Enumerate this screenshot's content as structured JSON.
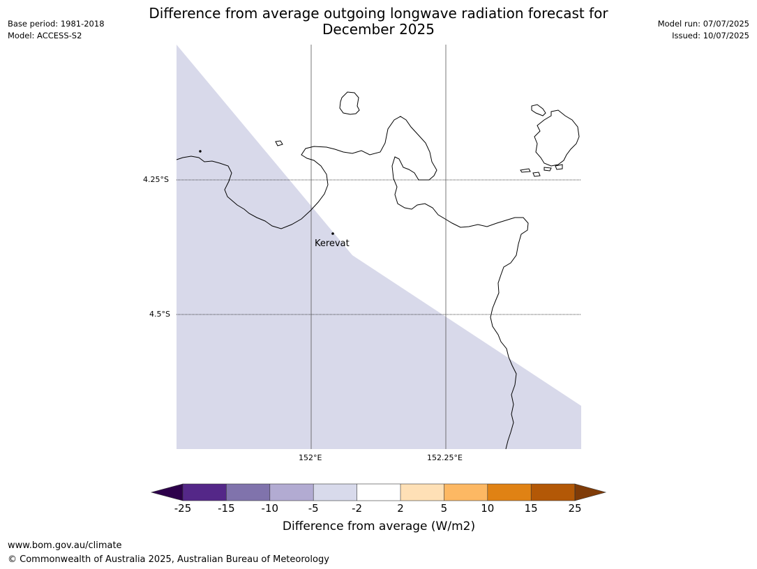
{
  "title": {
    "line1": "Difference from average outgoing longwave radiation forecast for",
    "line2": "December 2025"
  },
  "meta_left": {
    "base_period": "Base period: 1981-2018",
    "model": "Model: ACCESS-S2"
  },
  "meta_right": {
    "model_run": "Model run: 07/07/2025",
    "issued": "Issued: 10/07/2025"
  },
  "map": {
    "place_label": "Kerevat",
    "lat_labels": [
      "4.25°S",
      "4.5°S"
    ],
    "lon_labels": [
      "152°E",
      "152.25°E"
    ],
    "shade_category": "-5 to -2",
    "colors": {
      "shade": "#d8d9ea",
      "coast": "#000000",
      "gridline": "#555555"
    }
  },
  "colorbar": {
    "title": "Difference from average (W/m2)",
    "tick_labels": [
      "-25",
      "-15",
      "-10",
      "-5",
      "-2",
      "2",
      "5",
      "10",
      "15",
      "25"
    ],
    "colors": [
      "#2d004b",
      "#542788",
      "#8073ac",
      "#b2abd2",
      "#d8daeb",
      "#ffffff",
      "#fee0b6",
      "#fdb863",
      "#e08214",
      "#b35806",
      "#7f3b08"
    ]
  },
  "footer": {
    "url": "www.bom.gov.au/climate",
    "copyright": "© Commonwealth of Australia 2025, Australian Bureau of Meteorology"
  }
}
